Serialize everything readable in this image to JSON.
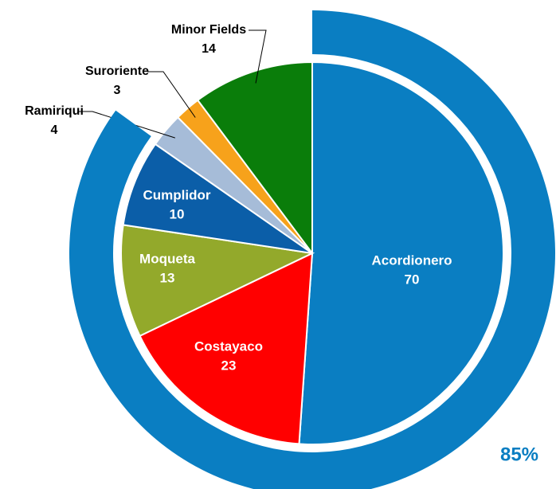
{
  "chart_data": [
    {
      "type": "pie",
      "categories": [
        "Acordionero",
        "Costayaco",
        "Moqueta",
        "Cumplidor",
        "Ramiriqui",
        "Suroriente",
        "Minor Fields"
      ],
      "values": [
        70,
        23,
        13,
        10,
        4,
        3,
        14
      ],
      "colors": [
        "#0a7ec2",
        "#ff0000",
        "#93a92b",
        "#0b5ea8",
        "#a6bcd8",
        "#f7a21b",
        "#0a7d0a"
      ]
    },
    {
      "type": "ring",
      "values": [
        85
      ],
      "value_labels": [
        "85%"
      ],
      "color": "#0a7ec2"
    }
  ]
}
